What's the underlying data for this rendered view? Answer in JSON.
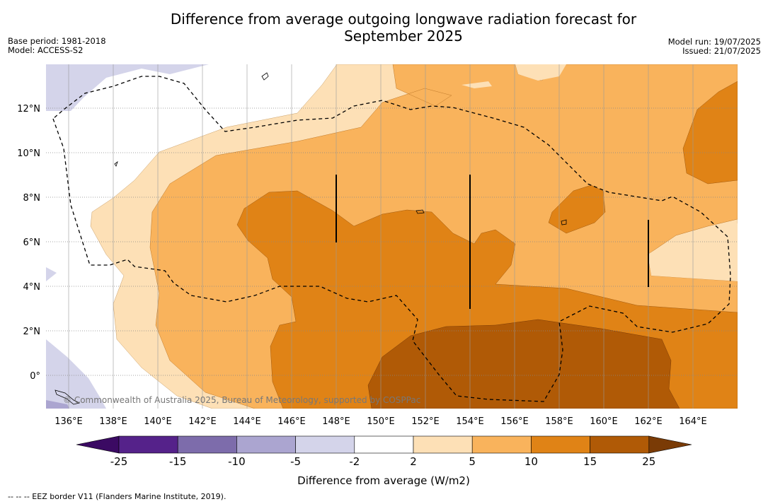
{
  "title_line1": "Difference from average outgoing longwave radiation forecast for",
  "title_line2": "September 2025",
  "base_period": "Base period: 1981-2018",
  "model": "Model: ACCESS-S2",
  "model_run": "Model run: 19/07/2025",
  "issued": "Issued: 21/07/2025",
  "credit": "© Commonwealth of Australia 2025, Bureau of Meteorology, supported by COSPPac",
  "colorbar_label": "Difference from average (W/m2)",
  "footnote": "--  --  -- EEZ border V11 (Flanders Marine Institute, 2019).",
  "x_ticks": [
    "136°E",
    "138°E",
    "140°E",
    "142°E",
    "144°E",
    "146°E",
    "148°E",
    "150°E",
    "152°E",
    "154°E",
    "156°E",
    "158°E",
    "160°E",
    "162°E",
    "164°E"
  ],
  "y_ticks": [
    "12°N",
    "10°N",
    "8°N",
    "6°N",
    "4°N",
    "2°N",
    "0°"
  ],
  "colorbar_ticks": [
    "-25",
    "-15",
    "-10",
    "-5",
    "-2",
    "2",
    "5",
    "10",
    "15",
    "25"
  ],
  "colorbar_colors": [
    "#3b0a63",
    "#55228a",
    "#7d6cab",
    "#aba5d0",
    "#d4d4ea",
    "#ffffff",
    "#fde0b6",
    "#f9b35c",
    "#e08316",
    "#b05a06",
    "#7a3b06"
  ],
  "chart_data": {
    "type": "heatmap",
    "x_range_deg_E": [
      135,
      166
    ],
    "y_range_deg_N": [
      -1.5,
      14
    ],
    "colorbar_range": [
      -25,
      25
    ],
    "colorbar_extends": "both"
  }
}
